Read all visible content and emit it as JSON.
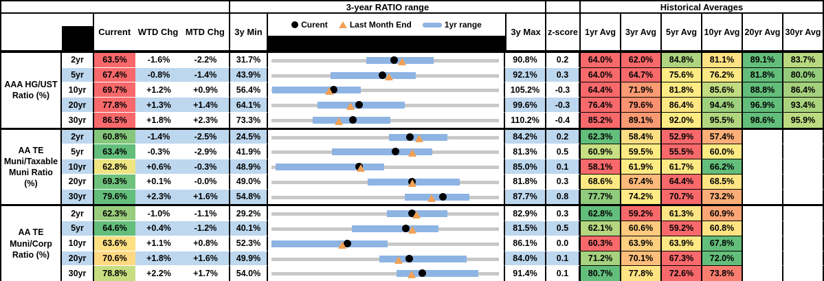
{
  "header": {
    "range_title": "3-year RATIO range",
    "hist_title": "Historical Averages",
    "col_current": "Current",
    "col_wtd": "WTD Chg",
    "col_mtd": "MTD Chg",
    "col_min": "3y Min",
    "col_max": "3y Max",
    "col_z": "z-score",
    "avg_cols": [
      "1yr Avg",
      "3yr Avg",
      "5yr Avg",
      "10yr Avg",
      "20yr Avg",
      "30yr Avg"
    ],
    "legend_current": "Curent",
    "legend_lme": "Last Month End",
    "legend_range": "1yr range"
  },
  "colors": {
    "stripe_blue": "#BDD7EE",
    "bar_blue": "#8EB4E3",
    "line_gray": "#C8C8C8",
    "triangle_orange": "#F2A154",
    "heat_red": "#F8696B",
    "heat_yellow": "#FFEB84",
    "heat_green": "#63BE7B"
  },
  "chart_data": {
    "type": "table",
    "title": "3-year RATIO range with Historical Averages",
    "columns": [
      "Current",
      "WTD Chg",
      "MTD Chg",
      "3y Min",
      "3y range chart",
      "3y Max",
      "z-score",
      "1yr Avg",
      "3yr Avg",
      "5yr Avg",
      "10yr Avg",
      "20yr Avg",
      "30yr Avg"
    ],
    "groups": [
      {
        "label_lines": [
          "AAA HG/UST",
          "Ratio (%)"
        ],
        "rows": [
          {
            "tenor": "2yr",
            "stripe": false,
            "current": {
              "v": "63.5%",
              "c": "#F8696B"
            },
            "wtd": "-1.6%",
            "mtd": "-2.2%",
            "min": "31.7%",
            "max": "90.8%",
            "z": "0.2",
            "chart": {
              "min": 31.7,
              "max": 90.8,
              "bar": [
                56.3,
                73.8
              ],
              "dot": 63.5,
              "tri": 65.7
            },
            "avgs": [
              {
                "v": "64.0%",
                "c": "#F8696B"
              },
              {
                "v": "62.0%",
                "c": "#F8696B"
              },
              {
                "v": "84.8%",
                "c": "#AFD47F"
              },
              {
                "v": "81.1%",
                "c": "#FFE283"
              },
              {
                "v": "89.1%",
                "c": "#63BE7B"
              },
              {
                "v": "83.7%",
                "c": "#B8D980"
              }
            ]
          },
          {
            "tenor": "5yr",
            "stripe": true,
            "current": {
              "v": "67.4%",
              "c": "#F8696B"
            },
            "wtd": "-0.8%",
            "mtd": "-1.4%",
            "min": "43.9%",
            "max": "92.1%",
            "z": "0.3",
            "chart": {
              "min": 43.9,
              "max": 92.1,
              "bar": [
                56.4,
                74.5
              ],
              "dot": 67.4,
              "tri": 68.8
            },
            "avgs": [
              {
                "v": "64.0%",
                "c": "#F8696B"
              },
              {
                "v": "64.7%",
                "c": "#F8696B"
              },
              {
                "v": "75.6%",
                "c": "#FFEB84"
              },
              {
                "v": "76.2%",
                "c": "#FCE883"
              },
              {
                "v": "81.8%",
                "c": "#63BE7B"
              },
              {
                "v": "80.0%",
                "c": "#94CC7C"
              }
            ]
          },
          {
            "tenor": "10yr",
            "stripe": false,
            "current": {
              "v": "69.7%",
              "c": "#F8696B"
            },
            "wtd": "+1.2%",
            "mtd": "+0.9%",
            "min": "56.4%",
            "max": "105.2%",
            "z": "-0.3",
            "chart": {
              "min": 56.4,
              "max": 105.2,
              "bar": [
                56.5,
                75.6
              ],
              "dot": 69.7,
              "tri": 68.8
            },
            "avgs": [
              {
                "v": "64.4%",
                "c": "#F8696B"
              },
              {
                "v": "71.9%",
                "c": "#FA9B73"
              },
              {
                "v": "81.8%",
                "c": "#FFEB84"
              },
              {
                "v": "85.6%",
                "c": "#C1DC81"
              },
              {
                "v": "88.8%",
                "c": "#63BE7B"
              },
              {
                "v": "86.4%",
                "c": "#A5D17E"
              }
            ]
          },
          {
            "tenor": "20yr",
            "stripe": true,
            "current": {
              "v": "77.8%",
              "c": "#F8696B"
            },
            "wtd": "+1.3%",
            "mtd": "+1.4%",
            "min": "64.1%",
            "max": "99.6%",
            "z": "-0.3",
            "chart": {
              "min": 64.1,
              "max": 99.6,
              "bar": [
                71.3,
                84.9
              ],
              "dot": 77.8,
              "tri": 76.4
            },
            "avgs": [
              {
                "v": "76.4%",
                "c": "#F8696B"
              },
              {
                "v": "79.6%",
                "c": "#FA9170"
              },
              {
                "v": "86.4%",
                "c": "#FFE683"
              },
              {
                "v": "94.4%",
                "c": "#9ED07D"
              },
              {
                "v": "96.9%",
                "c": "#63BE7B"
              },
              {
                "v": "93.4%",
                "c": "#ABD37E"
              }
            ]
          },
          {
            "tenor": "30yr",
            "stripe": false,
            "current": {
              "v": "86.5%",
              "c": "#F8696B"
            },
            "wtd": "+1.8%",
            "mtd": "+2.3%",
            "min": "73.3%",
            "max": "110.2%",
            "z": "-0.4",
            "chart": {
              "min": 73.3,
              "max": 110.2,
              "bar": [
                80.0,
                92.6
              ],
              "dot": 86.5,
              "tri": 84.2
            },
            "avgs": [
              {
                "v": "85.2%",
                "c": "#F8696B"
              },
              {
                "v": "89.1%",
                "c": "#FA9A73"
              },
              {
                "v": "92.0%",
                "c": "#FFEB84"
              },
              {
                "v": "95.5%",
                "c": "#B2D67F"
              },
              {
                "v": "98.6%",
                "c": "#63BE7B"
              },
              {
                "v": "95.9%",
                "c": "#BCDA80"
              }
            ]
          }
        ]
      },
      {
        "label_lines": [
          "AA TE",
          "Muni/Taxable",
          "Muni Ratio",
          "(%)"
        ],
        "rows": [
          {
            "tenor": "2yr",
            "stripe": true,
            "current": {
              "v": "60.8%",
              "c": "#84C77C"
            },
            "wtd": "-1.4%",
            "mtd": "-2.5%",
            "min": "24.5%",
            "max": "84.2%",
            "z": "0.2",
            "chart": {
              "min": 24.5,
              "max": 84.2,
              "bar": [
                55.3,
                70.6
              ],
              "dot": 60.8,
              "tri": 63.3
            },
            "avgs": [
              {
                "v": "62.3%",
                "c": "#63BE7B"
              },
              {
                "v": "58.4%",
                "c": "#FFDD82"
              },
              {
                "v": "52.9%",
                "c": "#F8696B"
              },
              {
                "v": "57.4%",
                "c": "#FCAF78"
              },
              null,
              null
            ]
          },
          {
            "tenor": "5yr",
            "stripe": false,
            "current": {
              "v": "63.4%",
              "c": "#63BE7B"
            },
            "wtd": "-0.3%",
            "mtd": "-2.9%",
            "min": "41.9%",
            "max": "81.3%",
            "z": "0.5",
            "chart": {
              "min": 41.9,
              "max": 81.3,
              "bar": [
                52.4,
                69.7
              ],
              "dot": 63.4,
              "tri": 66.3
            },
            "avgs": [
              {
                "v": "60.9%",
                "c": "#C9DF83"
              },
              {
                "v": "59.5%",
                "c": "#FFEB84"
              },
              {
                "v": "55.5%",
                "c": "#F8696B"
              },
              {
                "v": "60.0%",
                "c": "#FFEB84"
              },
              null,
              null
            ]
          },
          {
            "tenor": "10yr",
            "stripe": true,
            "current": {
              "v": "62.8%",
              "c": "#EEE482"
            },
            "wtd": "+0.6%",
            "mtd": "-0.3%",
            "min": "48.9%",
            "max": "85.0%",
            "z": "0.1",
            "chart": {
              "min": 48.9,
              "max": 85.0,
              "bar": [
                49.5,
                66.8
              ],
              "dot": 62.8,
              "tri": 63.1
            },
            "avgs": [
              {
                "v": "58.1%",
                "c": "#F8696B"
              },
              {
                "v": "61.9%",
                "c": "#FFEB84"
              },
              {
                "v": "61.7%",
                "c": "#FFE984"
              },
              {
                "v": "66.2%",
                "c": "#63BE7B"
              },
              null,
              null
            ]
          },
          {
            "tenor": "20yr",
            "stripe": false,
            "current": {
              "v": "69.3%",
              "c": "#6FC27B"
            },
            "wtd": "+0.1%",
            "mtd": "-0.0%",
            "min": "49.0%",
            "max": "81.8%",
            "z": "0.3",
            "chart": {
              "min": 49.0,
              "max": 81.8,
              "bar": [
                62.9,
                76.2
              ],
              "dot": 69.3,
              "tri": 69.3
            },
            "avgs": [
              {
                "v": "68.6%",
                "c": "#FDE983"
              },
              {
                "v": "67.4%",
                "c": "#FDB97B"
              },
              {
                "v": "64.4%",
                "c": "#F8696B"
              },
              {
                "v": "68.5%",
                "c": "#FEE583"
              },
              null,
              null
            ]
          },
          {
            "tenor": "30yr",
            "stripe": true,
            "current": {
              "v": "79.6%",
              "c": "#63BE7B"
            },
            "wtd": "+2.3%",
            "mtd": "+1.6%",
            "min": "54.8%",
            "max": "87.7%",
            "z": "0.8",
            "chart": {
              "min": 54.8,
              "max": 87.7,
              "bar": [
                74.1,
                83.4
              ],
              "dot": 79.6,
              "tri": 78.0
            },
            "avgs": [
              {
                "v": "77.7%",
                "c": "#8FCA7D"
              },
              {
                "v": "74.2%",
                "c": "#FFEB84"
              },
              {
                "v": "70.7%",
                "c": "#F8696B"
              },
              {
                "v": "73.2%",
                "c": "#FCAD77"
              },
              null,
              null
            ]
          }
        ]
      },
      {
        "label_lines": [
          "AA TE",
          "Muni/Corp",
          "Ratio (%)"
        ],
        "rows": [
          {
            "tenor": "2yr",
            "stripe": false,
            "current": {
              "v": "62.3%",
              "c": "#98CD7D"
            },
            "wtd": "-1.0%",
            "mtd": "-1.1%",
            "min": "29.2%",
            "max": "82.9%",
            "z": "0.3",
            "chart": {
              "min": 29.2,
              "max": 82.9,
              "bar": [
                56.5,
                70.7
              ],
              "dot": 62.3,
              "tri": 63.4
            },
            "avgs": [
              {
                "v": "62.8%",
                "c": "#63BE7B"
              },
              {
                "v": "59.2%",
                "c": "#F8696B"
              },
              {
                "v": "61.3%",
                "c": "#FFE583"
              },
              {
                "v": "60.9%",
                "c": "#FCA675"
              },
              null,
              null
            ]
          },
          {
            "tenor": "5yr",
            "stripe": true,
            "current": {
              "v": "64.6%",
              "c": "#63BE7B"
            },
            "wtd": "+0.4%",
            "mtd": "-1.2%",
            "min": "40.1%",
            "max": "81.5%",
            "z": "0.5",
            "chart": {
              "min": 40.1,
              "max": 81.5,
              "bar": [
                54.7,
                70.5
              ],
              "dot": 64.6,
              "tri": 65.8
            },
            "avgs": [
              {
                "v": "62.1%",
                "c": "#B4D67F"
              },
              {
                "v": "60.6%",
                "c": "#FECA7E"
              },
              {
                "v": "59.2%",
                "c": "#F8696B"
              },
              {
                "v": "60.8%",
                "c": "#FFE383"
              },
              null,
              null
            ]
          },
          {
            "tenor": "10yr",
            "stripe": false,
            "current": {
              "v": "63.6%",
              "c": "#FFE083"
            },
            "wtd": "+1.1%",
            "mtd": "+0.8%",
            "min": "52.3%",
            "max": "86.1%",
            "z": "0.0",
            "chart": {
              "min": 52.3,
              "max": 86.1,
              "bar": [
                52.3,
                69.6
              ],
              "dot": 63.6,
              "tri": 62.8
            },
            "avgs": [
              {
                "v": "60.3%",
                "c": "#F8696B"
              },
              {
                "v": "63.9%",
                "c": "#FECF7F"
              },
              {
                "v": "63.9%",
                "c": "#FFE984"
              },
              {
                "v": "67.8%",
                "c": "#63BE7B"
              },
              null,
              null
            ]
          },
          {
            "tenor": "20yr",
            "stripe": true,
            "current": {
              "v": "70.6%",
              "c": "#FFD981"
            },
            "wtd": "+1.8%",
            "mtd": "+1.6%",
            "min": "49.9%",
            "max": "84.0%",
            "z": "0.1",
            "chart": {
              "min": 49.9,
              "max": 84.0,
              "bar": [
                66.1,
                79.2
              ],
              "dot": 70.6,
              "tri": 69.0
            },
            "avgs": [
              {
                "v": "71.2%",
                "c": "#A6D17E"
              },
              {
                "v": "70.1%",
                "c": "#FDBE7C"
              },
              {
                "v": "67.3%",
                "c": "#F8696B"
              },
              {
                "v": "72.0%",
                "c": "#63BE7B"
              },
              null,
              null
            ]
          },
          {
            "tenor": "30yr",
            "stripe": false,
            "current": {
              "v": "78.8%",
              "c": "#C6DD82"
            },
            "wtd": "+2.2%",
            "mtd": "+1.7%",
            "min": "54.0%",
            "max": "91.4%",
            "z": "0.1",
            "chart": {
              "min": 54.0,
              "max": 91.4,
              "bar": [
                74.6,
                88.0
              ],
              "dot": 78.8,
              "tri": 77.1
            },
            "avgs": [
              {
                "v": "80.7%",
                "c": "#63BE7B"
              },
              {
                "v": "77.8%",
                "c": "#FFE483"
              },
              {
                "v": "72.6%",
                "c": "#F8696B"
              },
              {
                "v": "73.8%",
                "c": "#F97E70"
              },
              null,
              null
            ]
          }
        ]
      }
    ]
  }
}
